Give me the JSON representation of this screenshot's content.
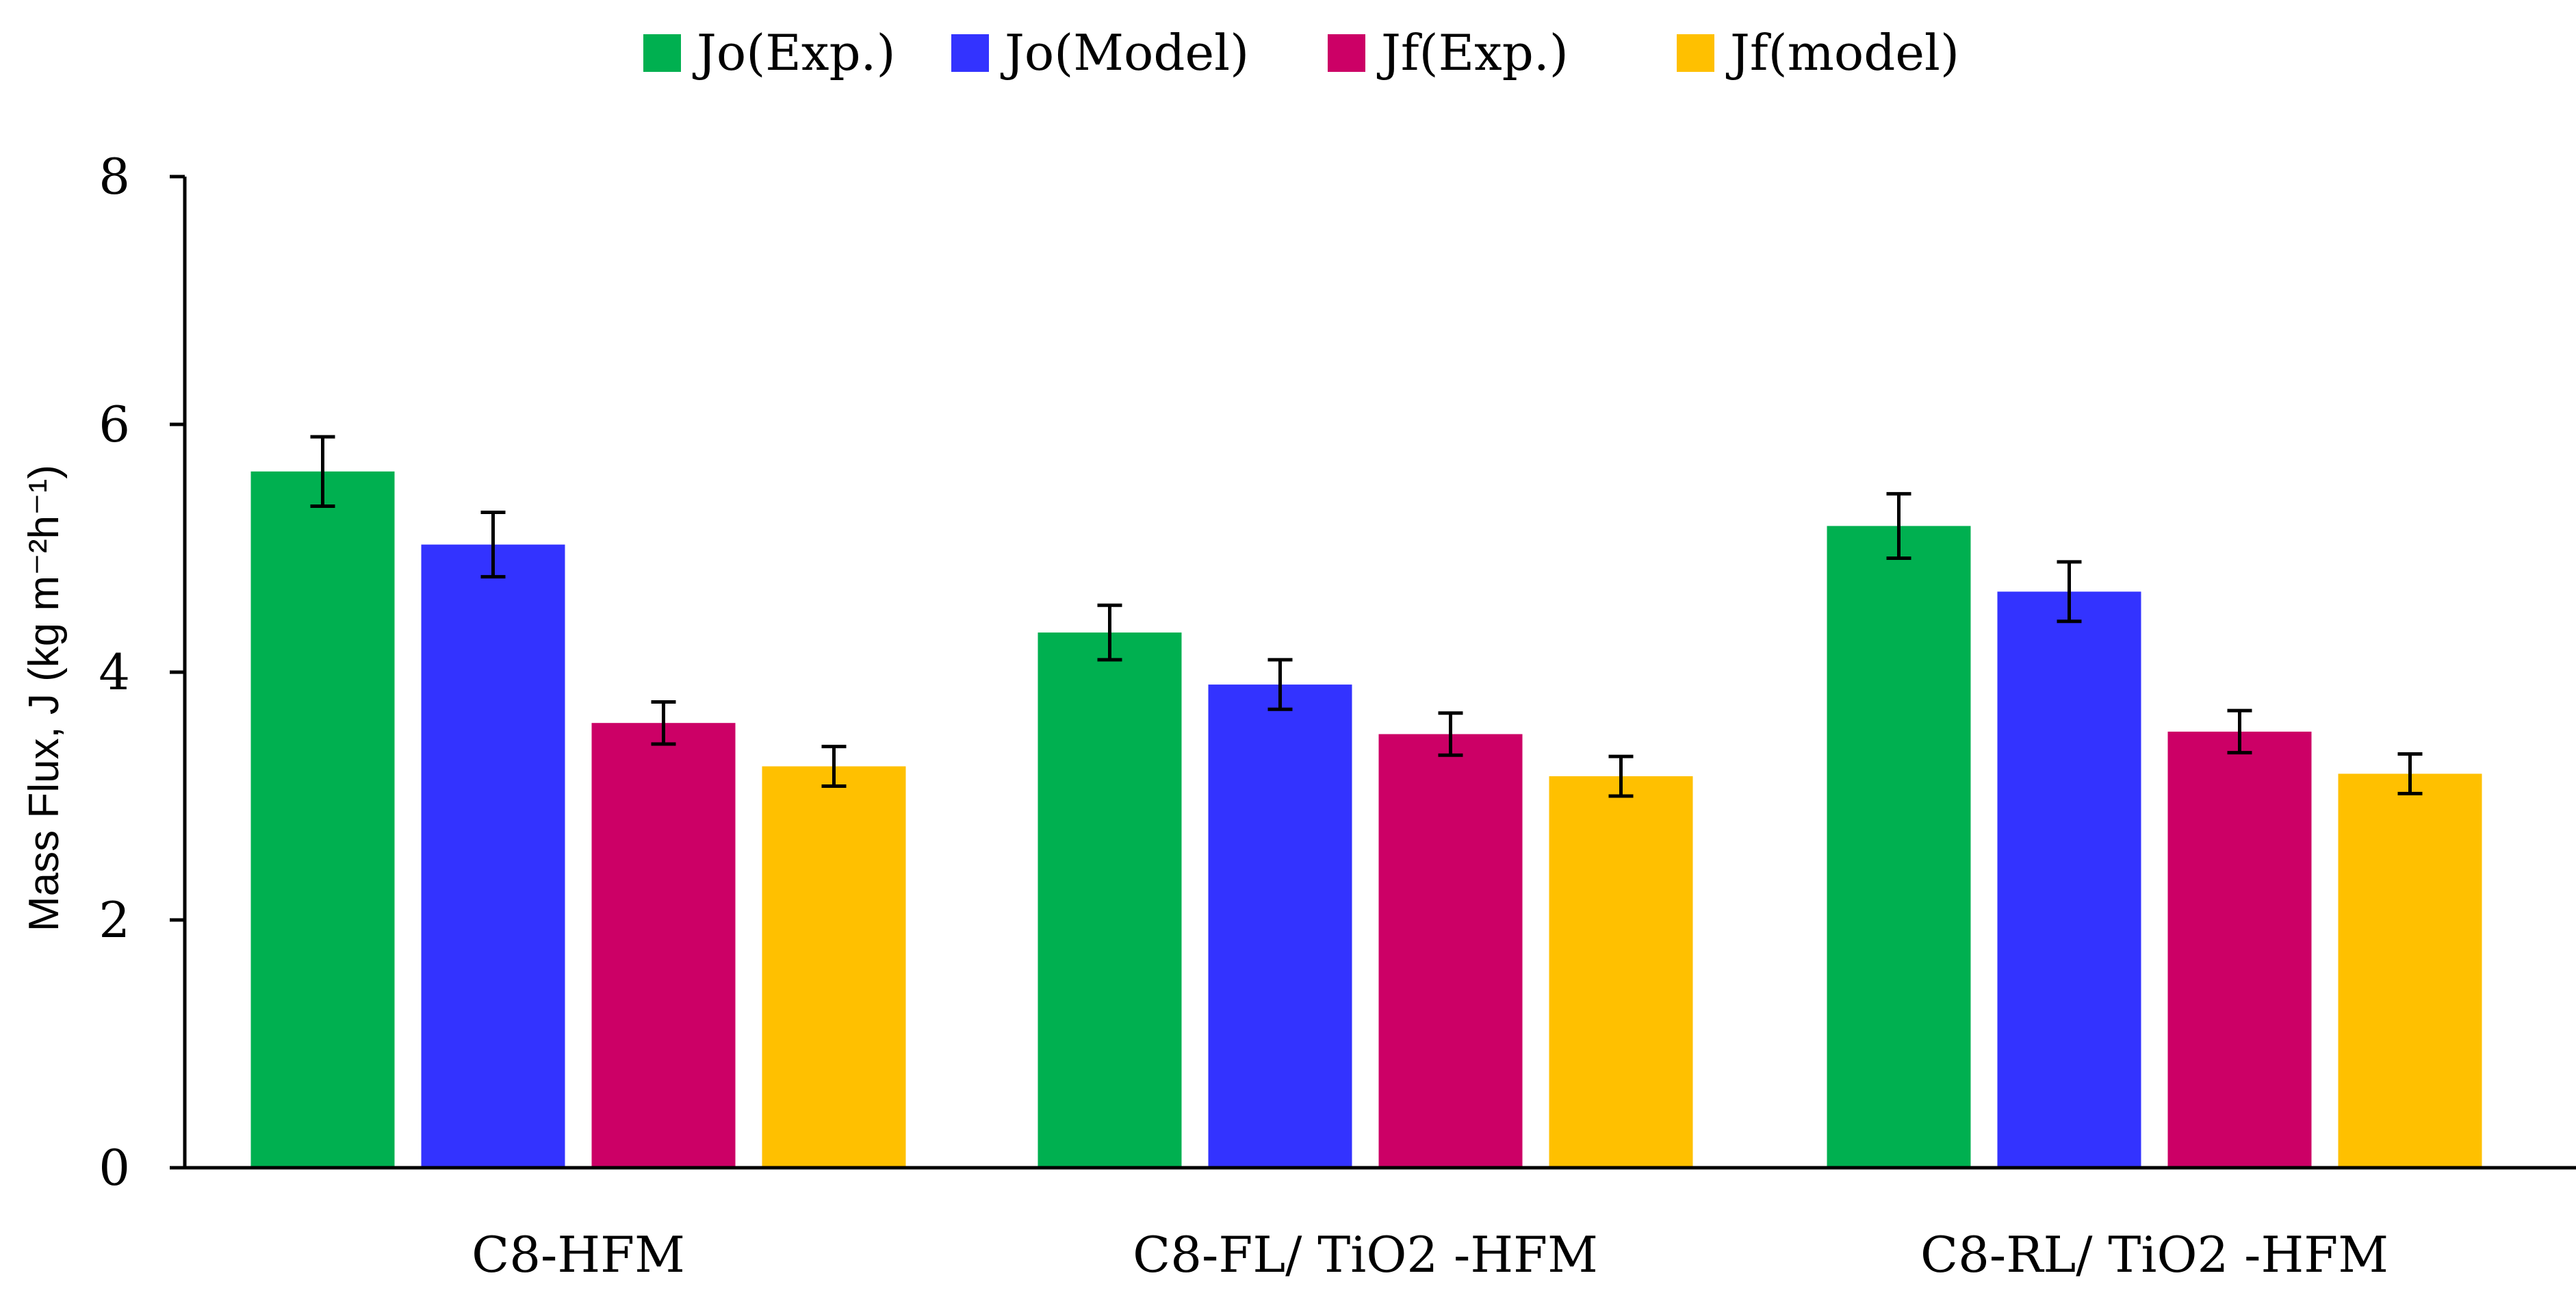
{
  "chart_data": {
    "type": "bar",
    "title": "",
    "xlabel": "",
    "ylabel": "Mass Flux, J (kg m⁻²h⁻¹)",
    "ylim": [
      0,
      8
    ],
    "yticks": [
      0,
      2,
      4,
      6,
      8
    ],
    "grid": false,
    "legend_position": "top-center",
    "categories": [
      "C8-HFM",
      "C8-FL/ TiO2 -HFM",
      "C8-RL/ TiO2 -HFM"
    ],
    "series": [
      {
        "name": "Jo(Exp.)",
        "color": "#00B050",
        "values": [
          5.62,
          4.32,
          5.18
        ],
        "errors": [
          0.28,
          0.22,
          0.26
        ]
      },
      {
        "name": "Jo(Model)",
        "color": "#3333FF",
        "values": [
          5.03,
          3.9,
          4.65
        ],
        "errors": [
          0.26,
          0.2,
          0.24
        ]
      },
      {
        "name": "Jf(Exp.)",
        "color": "#CC0066",
        "values": [
          3.59,
          3.5,
          3.52
        ],
        "errors": [
          0.17,
          0.17,
          0.17
        ]
      },
      {
        "name": "Jf(model)",
        "color": "#FFC000",
        "values": [
          3.24,
          3.16,
          3.18
        ],
        "errors": [
          0.16,
          0.16,
          0.16
        ]
      }
    ]
  }
}
